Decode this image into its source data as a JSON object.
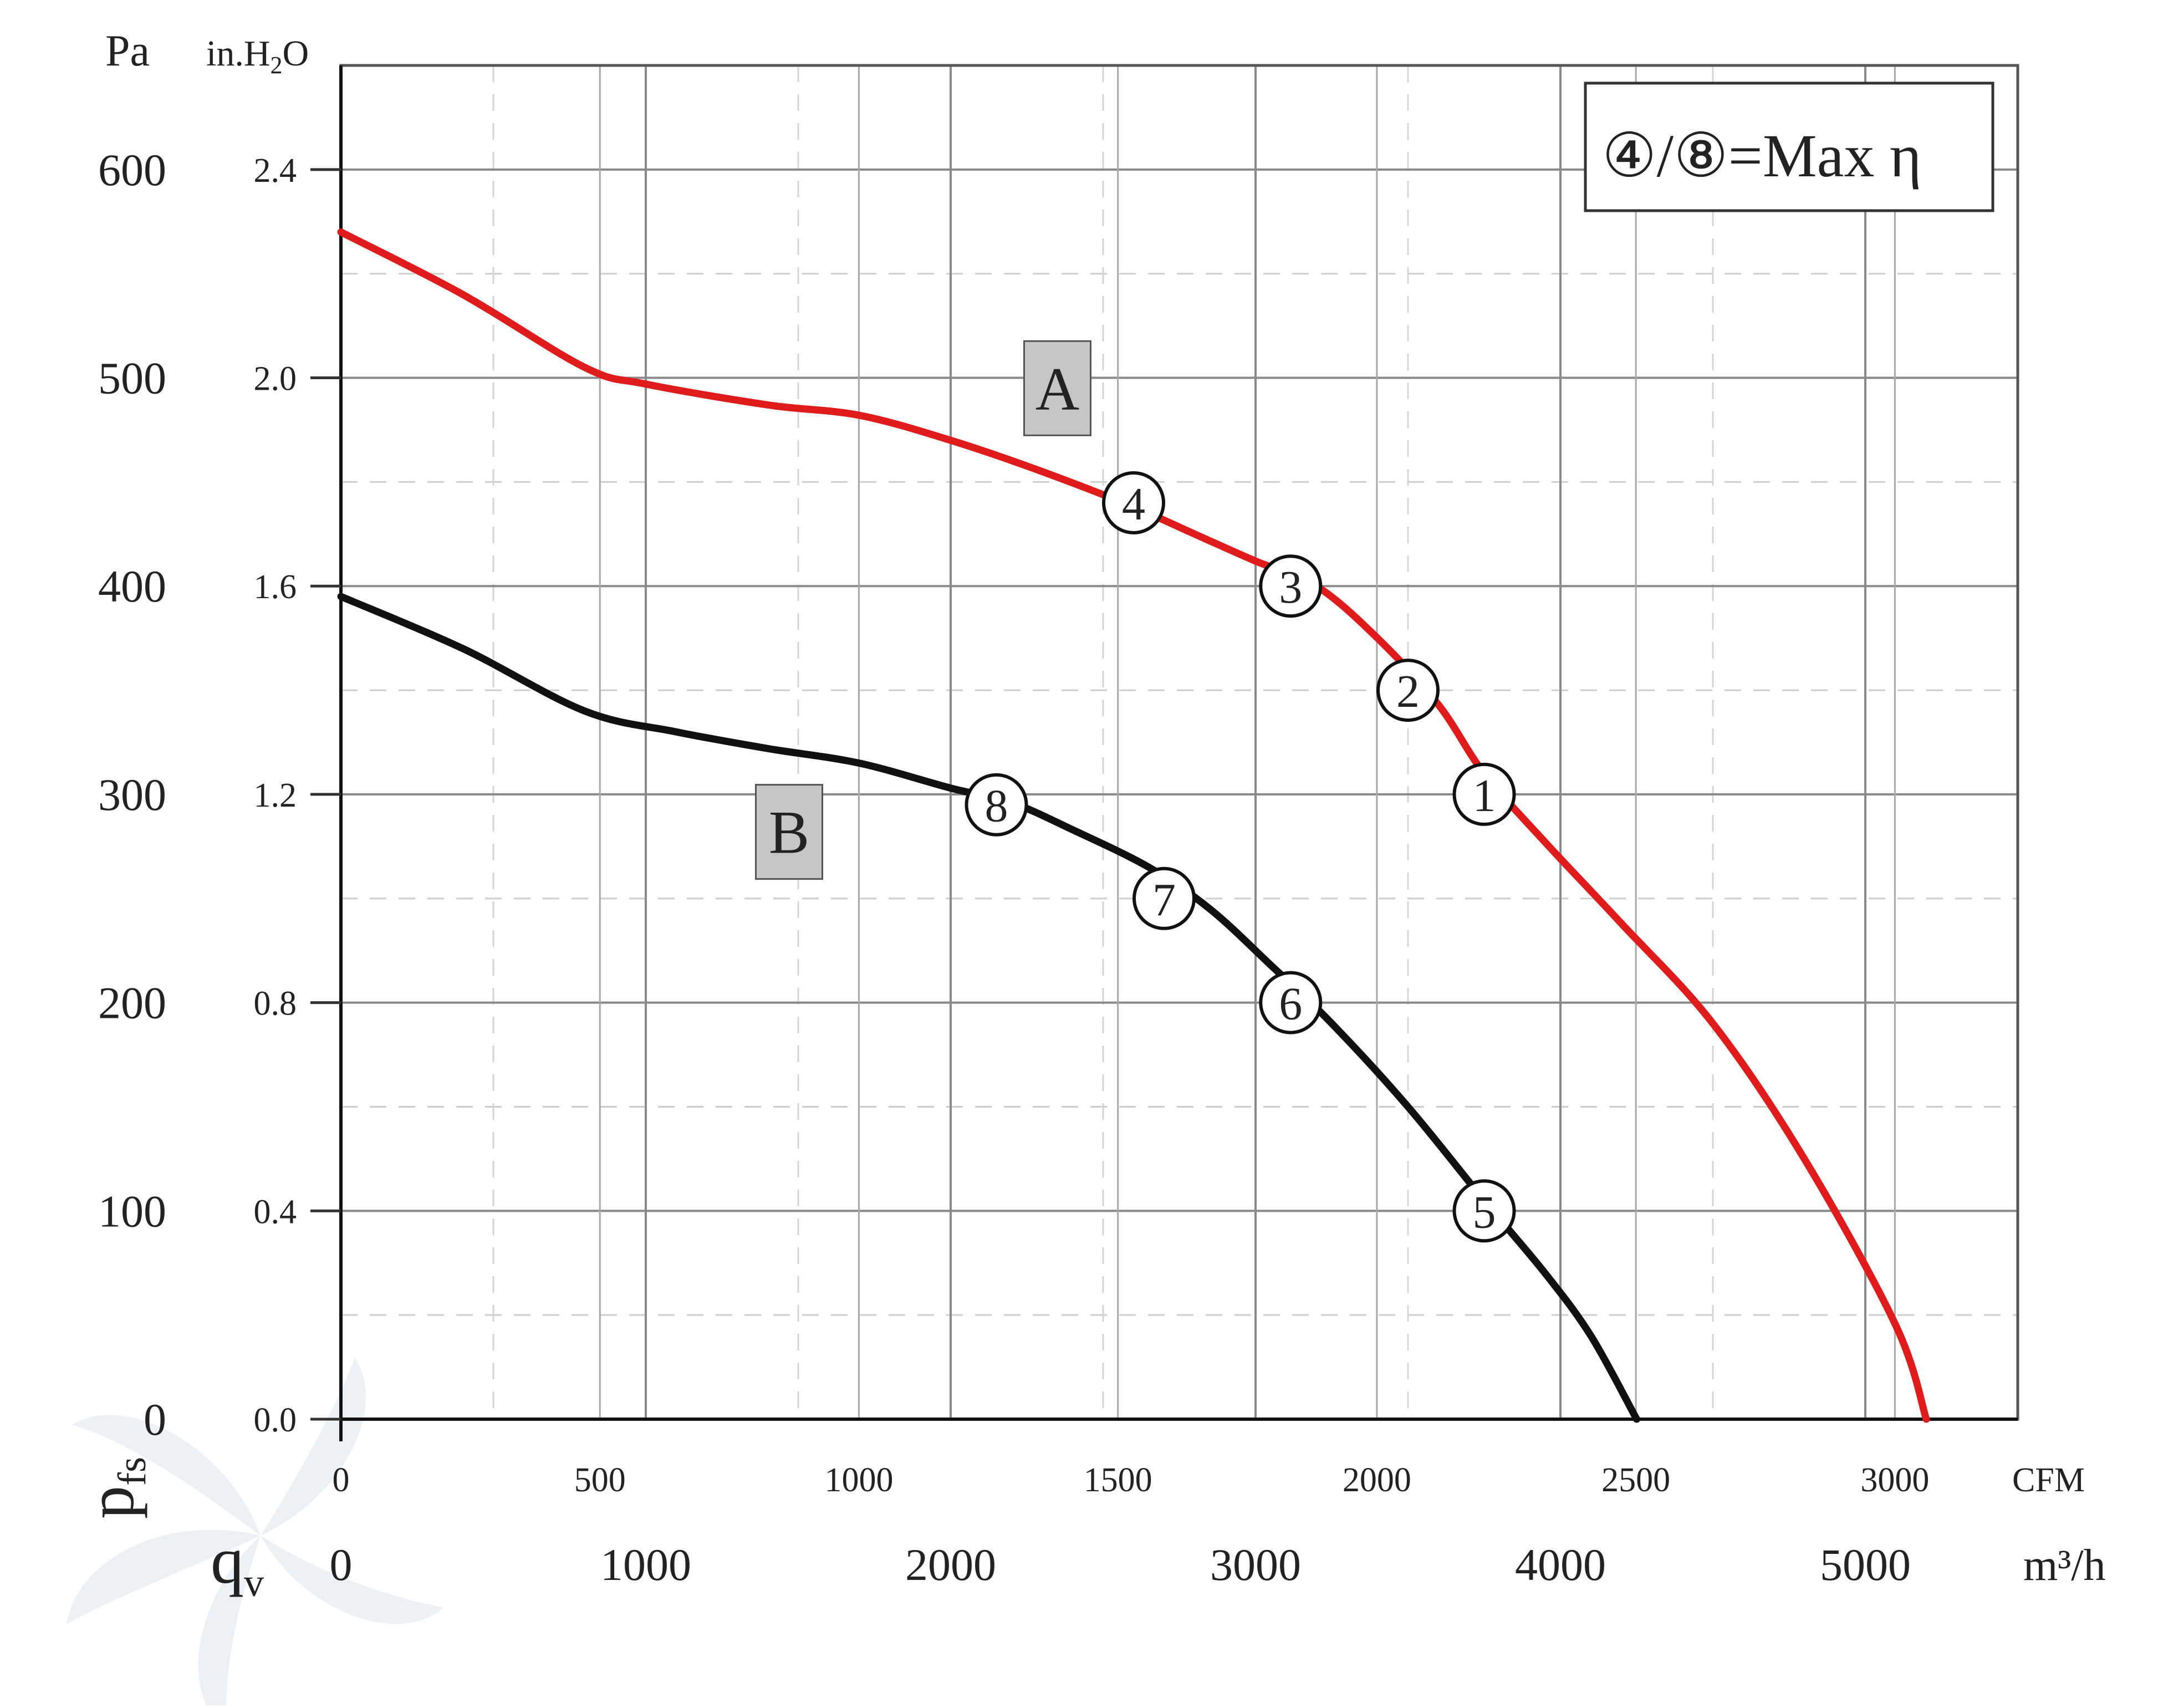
{
  "chart_data": {
    "type": "line",
    "x_primary": {
      "unit": "m³/h",
      "ticks": [
        0,
        1000,
        2000,
        3000,
        4000,
        5000
      ],
      "range": [
        0,
        5500
      ]
    },
    "x_secondary": {
      "unit": "CFM",
      "ticks": [
        0,
        500,
        1000,
        1500,
        2000,
        2500,
        3000
      ]
    },
    "y_primary": {
      "unit": "Pa",
      "ticks": [
        0,
        100,
        200,
        300,
        400,
        500,
        600
      ],
      "range": [
        0,
        650
      ]
    },
    "y_secondary": {
      "unit_base": "in.H",
      "unit_sub": "2",
      "unit_end": "O",
      "ticks": [
        "0.0",
        "0.4",
        "0.8",
        "1.2",
        "1.6",
        "2.0",
        "2.4"
      ]
    },
    "y_symbol": {
      "base": "p",
      "sub": "fs"
    },
    "x_symbol": {
      "base": "q",
      "sub": "v"
    },
    "grid": true,
    "legend_box": {
      "text": "④/⑧=Max η",
      "placement": "top-right"
    },
    "series": [
      {
        "name": "A",
        "color": "#e01b1b",
        "points": [
          [
            0,
            570
          ],
          [
            400,
            540
          ],
          [
            800,
            505
          ],
          [
            1000,
            497
          ],
          [
            1400,
            487
          ],
          [
            1700,
            482
          ],
          [
            2000,
            470
          ],
          [
            2300,
            455
          ],
          [
            2600,
            438
          ],
          [
            2800,
            425
          ],
          [
            3000,
            412
          ],
          [
            3200,
            400
          ],
          [
            3400,
            375
          ],
          [
            3600,
            343
          ],
          [
            3750,
            310
          ],
          [
            3950,
            277
          ],
          [
            4200,
            238
          ],
          [
            4500,
            190
          ],
          [
            4800,
            125
          ],
          [
            5100,
            45
          ],
          [
            5200,
            0
          ]
        ]
      },
      {
        "name": "B",
        "color": "#111111",
        "points": [
          [
            0,
            395
          ],
          [
            400,
            370
          ],
          [
            800,
            340
          ],
          [
            1100,
            330
          ],
          [
            1400,
            322
          ],
          [
            1700,
            315
          ],
          [
            2000,
            303
          ],
          [
            2200,
            296
          ],
          [
            2400,
            283
          ],
          [
            2650,
            265
          ],
          [
            2850,
            245
          ],
          [
            3050,
            218
          ],
          [
            3250,
            190
          ],
          [
            3500,
            150
          ],
          [
            3750,
            105
          ],
          [
            3950,
            70
          ],
          [
            4100,
            40
          ],
          [
            4250,
            0
          ]
        ]
      }
    ],
    "curve_labels": [
      {
        "text": "A",
        "x": 2350,
        "y": 495
      },
      {
        "text": "B",
        "x": 1470,
        "y": 282
      }
    ],
    "operating_points": [
      {
        "label": "1",
        "x": 3750,
        "y": 300
      },
      {
        "label": "2",
        "x": 3500,
        "y": 350
      },
      {
        "label": "3",
        "x": 3115,
        "y": 400
      },
      {
        "label": "4",
        "x": 2600,
        "y": 440
      },
      {
        "label": "5",
        "x": 3750,
        "y": 100
      },
      {
        "label": "6",
        "x": 3115,
        "y": 200
      },
      {
        "label": "7",
        "x": 2700,
        "y": 250
      },
      {
        "label": "8",
        "x": 2150,
        "y": 295
      }
    ]
  }
}
